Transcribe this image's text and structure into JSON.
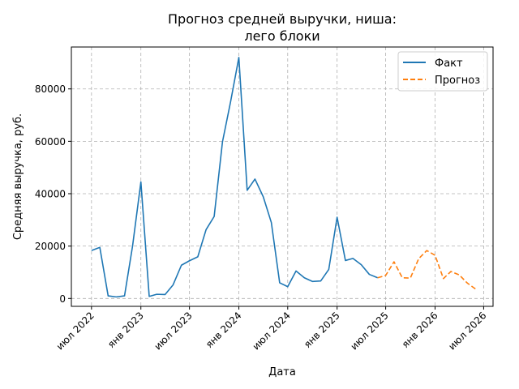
{
  "chart_data": {
    "type": "line",
    "title": "Прогноз средней выручки, ниша:",
    "title_line2": "лего блоки",
    "xlabel": "Дата",
    "ylabel": "Средняя выручка, руб.",
    "x_tick_labels": [
      "июл 2022",
      "янв 2023",
      "июл 2023",
      "янв 2024",
      "июл 2024",
      "янв 2025",
      "июл 2025",
      "янв 2026",
      "июл 2026"
    ],
    "y_tick_labels": [
      "0",
      "20000",
      "40000",
      "60000",
      "80000"
    ],
    "y_ticks": [
      0,
      20000,
      40000,
      60000,
      80000
    ],
    "ylim": [
      -3000,
      96000
    ],
    "xlim": [
      "2022-04-17",
      "2026-08-05"
    ],
    "grid": true,
    "legend_position": "top-right",
    "colors": {
      "fact": "#1f77b4",
      "forecast": "#ff7f0e",
      "grid": "#b0b0b0"
    },
    "series": [
      {
        "name": "Факт",
        "style": "solid",
        "color": "#1f77b4",
        "x": [
          "2022-07-01",
          "2022-08-01",
          "2022-09-01",
          "2022-10-01",
          "2022-11-01",
          "2022-12-01",
          "2023-01-01",
          "2023-02-01",
          "2023-03-01",
          "2023-04-01",
          "2023-05-01",
          "2023-06-01",
          "2023-07-01",
          "2023-08-01",
          "2023-09-01",
          "2023-10-01",
          "2023-11-01",
          "2023-12-01",
          "2024-01-01",
          "2024-02-01",
          "2024-03-01",
          "2024-04-01",
          "2024-05-01",
          "2024-06-01",
          "2024-07-01",
          "2024-08-01",
          "2024-09-01",
          "2024-10-01",
          "2024-11-01",
          "2024-12-01",
          "2025-01-01",
          "2025-02-01",
          "2025-03-01",
          "2025-04-01",
          "2025-05-01",
          "2025-06-01"
        ],
        "values": [
          18300,
          19500,
          1000,
          600,
          1000,
          20000,
          44500,
          800,
          1600,
          1500,
          5200,
          12700,
          14400,
          15900,
          26300,
          31300,
          59800,
          75000,
          92000,
          41300,
          45600,
          38800,
          29000,
          6000,
          4500,
          10500,
          7900,
          6500,
          6700,
          11100,
          31000,
          14500,
          15300,
          12900,
          9200,
          7900
        ]
      },
      {
        "name": "Прогноз",
        "style": "dashed",
        "color": "#ff7f0e",
        "x": [
          "2025-06-01",
          "2025-07-01",
          "2025-08-01",
          "2025-09-01",
          "2025-10-01",
          "2025-11-01",
          "2025-12-01",
          "2026-01-01",
          "2026-02-01",
          "2026-03-01",
          "2026-04-01",
          "2026-05-01",
          "2026-06-01"
        ],
        "values": [
          7900,
          8800,
          14000,
          7900,
          7800,
          15200,
          18300,
          16500,
          7600,
          10300,
          9000,
          5900,
          3600
        ]
      }
    ]
  }
}
